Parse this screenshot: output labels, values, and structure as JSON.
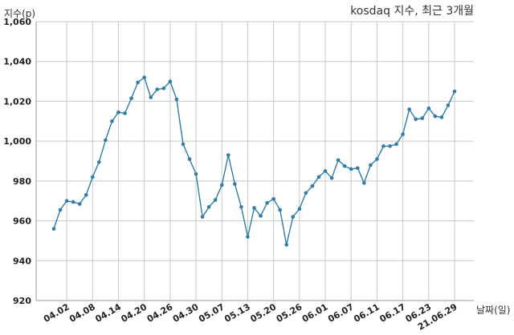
{
  "chart_data": {
    "type": "line",
    "title": "kosdaq 지수, 최근 3개월",
    "ylabel": "지수(p)",
    "xlabel": "날짜(일)",
    "ylim": [
      920,
      1060
    ],
    "yticks": [
      920,
      940,
      960,
      980,
      1000,
      1020,
      1040,
      1060
    ],
    "ytick_labels": [
      "920",
      "940",
      "960",
      "980",
      "1,000",
      "1,020",
      "1,040",
      "1,060"
    ],
    "grid": true,
    "color": "#2e7ea8",
    "xtick_labels": [
      "04.02",
      "04.08",
      "04.14",
      "04.20",
      "04.26",
      "04.30",
      "05.07",
      "05.13",
      "05.20",
      "05.26",
      "06.01",
      "06.07",
      "06.11",
      "06.17",
      "06.23",
      "21.06.29"
    ],
    "xtick_index": [
      2,
      6,
      10,
      14,
      18,
      22,
      26,
      30,
      34,
      38,
      42,
      46,
      50,
      54,
      58,
      62
    ],
    "values": [
      956,
      965.5,
      970,
      969.5,
      968.5,
      973,
      982,
      989.5,
      1000.5,
      1010,
      1014.5,
      1014,
      1021.5,
      1029.5,
      1032,
      1022,
      1026,
      1026.5,
      1030,
      1021,
      998.5,
      991,
      983.5,
      962,
      967,
      970.5,
      978,
      993,
      978.5,
      967,
      952,
      966.5,
      962.5,
      969,
      971,
      965.5,
      948,
      962,
      966,
      974,
      977.5,
      982,
      985,
      981.5,
      990.5,
      987.5,
      986,
      986.5,
      979,
      988,
      991,
      997.5,
      997.5,
      998.5,
      1003.5,
      1016,
      1011,
      1011.5,
      1016.5,
      1012.5,
      1012,
      1018,
      1025
    ]
  }
}
